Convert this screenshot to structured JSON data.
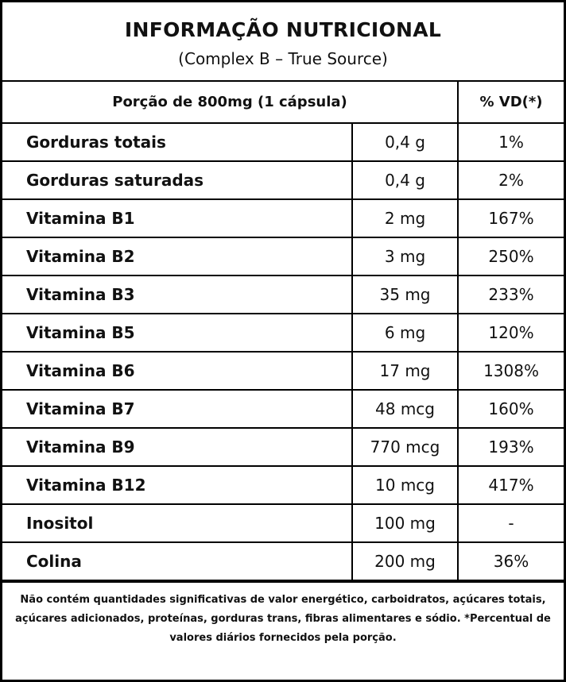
{
  "header": {
    "title": "INFORMAÇÃO NUTRICIONAL",
    "subtitle": "(Complex B – True Source)"
  },
  "table": {
    "columns": [
      "Porção de 800mg (1 cápsula)",
      "% VD(*)"
    ],
    "rows": [
      [
        "Gorduras totais",
        "0,4 g",
        "1%"
      ],
      [
        "Gorduras saturadas",
        "0,4 g",
        "2%"
      ],
      [
        "Vitamina B1",
        "2 mg",
        "167%"
      ],
      [
        "Vitamina B2",
        "3 mg",
        "250%"
      ],
      [
        "Vitamina B3",
        "35 mg",
        "233%"
      ],
      [
        "Vitamina B5",
        "6 mg",
        "120%"
      ],
      [
        "Vitamina B6",
        "17 mg",
        "1308%"
      ],
      [
        "Vitamina B7",
        "48 mcg",
        "160%"
      ],
      [
        "Vitamina B9",
        "770 mcg",
        "193%"
      ],
      [
        "Vitamina B12",
        "10 mcg",
        "417%"
      ],
      [
        "Inositol",
        "100 mg",
        "-"
      ],
      [
        "Colina",
        "200 mg",
        "36%"
      ]
    ]
  },
  "footnote": "Não contém quantidades significativas de valor energético, carboidratos, açúcares totais, açúcares adicionados, proteínas, gorduras trans, fibras alimentares e sódio. *Percentual de valores diários fornecidos pela porção."
}
